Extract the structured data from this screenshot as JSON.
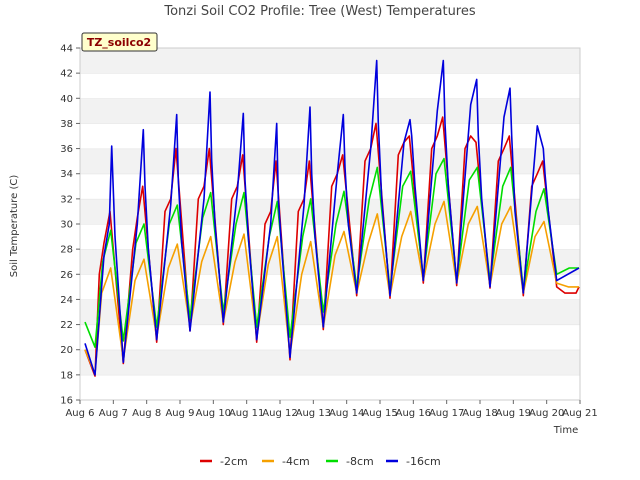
{
  "chart_data": {
    "type": "line",
    "title": "Tonzi Soil CO2 Profile: Tree (West) Temperatures",
    "xlabel": "Time",
    "ylabel": "Soil Temperature (C)",
    "badge": "TZ_soilco2",
    "ylim": [
      16,
      44
    ],
    "yticks": [
      16,
      18,
      20,
      22,
      24,
      26,
      28,
      30,
      32,
      34,
      36,
      38,
      40,
      42,
      44
    ],
    "xlim": [
      6,
      21
    ],
    "xticks": [
      "Aug 6",
      "Aug 7",
      "Aug 8",
      "Aug 9",
      "Aug 10",
      "Aug 11",
      "Aug 12",
      "Aug 13",
      "Aug 14",
      "Aug 15",
      "Aug 16",
      "Aug 17",
      "Aug 18",
      "Aug 19",
      "Aug 20",
      "Aug 21"
    ],
    "grid": "horizontal bands",
    "legend_position": "bottom",
    "series": [
      {
        "name": "-2cm",
        "color": "#dd0000",
        "x": [
          6.15,
          6.45,
          6.58,
          6.72,
          6.9,
          7.3,
          7.58,
          7.72,
          7.88,
          8.3,
          8.55,
          8.72,
          8.88,
          9.3,
          9.55,
          9.72,
          9.88,
          10.3,
          10.55,
          10.72,
          10.88,
          11.3,
          11.55,
          11.72,
          11.88,
          12.3,
          12.55,
          12.72,
          12.88,
          13.3,
          13.55,
          13.72,
          13.88,
          14.3,
          14.55,
          14.72,
          14.88,
          15.3,
          15.55,
          15.72,
          15.88,
          16.3,
          16.55,
          16.72,
          16.88,
          17.3,
          17.55,
          17.72,
          17.88,
          18.3,
          18.55,
          18.72,
          18.88,
          19.3,
          19.55,
          19.72,
          19.88,
          20.3,
          20.55,
          20.72,
          20.88,
          20.97
        ],
        "y": [
          20.0,
          17.9,
          26.0,
          28.5,
          31.0,
          18.9,
          28.0,
          30.5,
          33.0,
          20.6,
          31.0,
          32.0,
          36.0,
          21.5,
          32.0,
          33.0,
          36.0,
          22.0,
          32.0,
          33.0,
          35.5,
          20.6,
          30.0,
          31.0,
          35.0,
          19.2,
          31.0,
          32.0,
          35.0,
          21.6,
          33.0,
          34.0,
          35.5,
          24.3,
          35.0,
          36.0,
          38.0,
          24.1,
          35.5,
          36.5,
          37.0,
          25.3,
          36.0,
          37.0,
          38.5,
          25.1,
          36.0,
          37.0,
          36.5,
          24.9,
          35.0,
          36.0,
          37.0,
          24.3,
          33.0,
          34.0,
          35.0,
          25.0,
          24.5,
          24.5,
          24.5,
          25.0
        ]
      },
      {
        "name": "-4cm",
        "color": "#f5a000",
        "x": [
          6.15,
          6.45,
          6.65,
          6.92,
          7.3,
          7.65,
          7.92,
          8.3,
          8.65,
          8.92,
          9.3,
          9.65,
          9.92,
          10.3,
          10.65,
          10.92,
          11.3,
          11.65,
          11.92,
          12.3,
          12.65,
          12.92,
          13.3,
          13.65,
          13.92,
          14.3,
          14.65,
          14.92,
          15.3,
          15.65,
          15.92,
          16.3,
          16.65,
          16.92,
          17.3,
          17.65,
          17.92,
          18.3,
          18.65,
          18.92,
          19.3,
          19.65,
          19.92,
          20.3,
          20.65,
          20.97
        ],
        "y": [
          20.0,
          18.1,
          24.5,
          26.5,
          19.2,
          25.5,
          27.2,
          21.0,
          26.5,
          28.4,
          21.8,
          27.0,
          29.0,
          22.2,
          27.0,
          29.2,
          21.0,
          26.8,
          29.0,
          19.6,
          26.0,
          28.6,
          21.8,
          27.5,
          29.4,
          24.5,
          28.5,
          30.8,
          24.3,
          29.0,
          31.0,
          25.5,
          30.0,
          31.8,
          25.3,
          30.0,
          31.4,
          25.1,
          30.0,
          31.4,
          24.5,
          29.0,
          30.2,
          25.3,
          25.0,
          25.0
        ]
      },
      {
        "name": "-8cm",
        "color": "#00dd00",
        "x": [
          6.15,
          6.45,
          6.68,
          6.92,
          7.3,
          7.68,
          7.92,
          8.3,
          8.68,
          8.92,
          9.3,
          9.68,
          9.92,
          10.3,
          10.68,
          10.92,
          11.3,
          11.68,
          11.92,
          12.3,
          12.68,
          12.92,
          13.3,
          13.68,
          13.92,
          14.3,
          14.68,
          14.92,
          15.3,
          15.68,
          15.92,
          16.3,
          16.68,
          16.92,
          17.3,
          17.68,
          17.92,
          18.3,
          18.68,
          18.92,
          19.3,
          19.68,
          19.92,
          20.3,
          20.68,
          20.97
        ],
        "y": [
          22.2,
          20.2,
          27.0,
          29.5,
          20.7,
          28.5,
          30.0,
          21.8,
          30.0,
          31.5,
          22.5,
          30.5,
          32.5,
          23.0,
          30.0,
          32.5,
          21.8,
          29.0,
          31.8,
          21.0,
          29.0,
          32.0,
          23.0,
          30.0,
          32.6,
          25.0,
          32.0,
          34.5,
          24.8,
          33.0,
          34.2,
          25.8,
          34.0,
          35.2,
          25.5,
          33.5,
          34.5,
          25.5,
          33.0,
          34.5,
          24.8,
          31.0,
          32.8,
          26.0,
          26.5,
          26.5
        ]
      },
      {
        "name": "-16cm",
        "color": "#0000dd",
        "x": [
          6.15,
          6.45,
          6.72,
          6.88,
          6.95,
          7.05,
          7.3,
          7.72,
          7.9,
          7.95,
          8.05,
          8.3,
          8.72,
          8.9,
          8.95,
          9.05,
          9.3,
          9.72,
          9.9,
          9.95,
          10.05,
          10.3,
          10.72,
          10.9,
          10.95,
          11.05,
          11.3,
          11.72,
          11.9,
          11.95,
          12.05,
          12.3,
          12.72,
          12.9,
          12.95,
          13.05,
          13.3,
          13.72,
          13.9,
          13.95,
          14.05,
          14.3,
          14.72,
          14.9,
          14.95,
          15.05,
          15.3,
          15.72,
          15.9,
          15.95,
          16.05,
          16.3,
          16.72,
          16.9,
          16.95,
          17.05,
          17.3,
          17.72,
          17.9,
          17.95,
          18.05,
          18.3,
          18.72,
          18.9,
          18.95,
          19.05,
          19.3,
          19.72,
          19.9,
          19.95,
          20.05,
          20.3,
          20.97
        ],
        "y": [
          20.5,
          18.0,
          27.5,
          30.0,
          36.2,
          29.0,
          19.0,
          30.0,
          37.5,
          33.0,
          28.0,
          20.8,
          31.5,
          38.7,
          33.5,
          28.5,
          21.5,
          32.0,
          40.5,
          35.0,
          30.0,
          22.2,
          32.5,
          38.8,
          33.5,
          29.0,
          20.8,
          30.0,
          38.0,
          32.0,
          28.0,
          19.4,
          31.5,
          39.3,
          34.0,
          29.0,
          21.8,
          34.0,
          38.7,
          34.5,
          30.0,
          24.5,
          36.0,
          43.0,
          38.0,
          32.0,
          24.3,
          36.5,
          38.3,
          37.0,
          33.0,
          25.5,
          39.0,
          43.0,
          38.0,
          33.0,
          25.3,
          39.5,
          41.5,
          37.0,
          32.0,
          25.0,
          38.5,
          40.8,
          37.0,
          31.0,
          24.5,
          37.8,
          36.0,
          34.0,
          31.0,
          25.5,
          26.5
        ]
      }
    ]
  }
}
